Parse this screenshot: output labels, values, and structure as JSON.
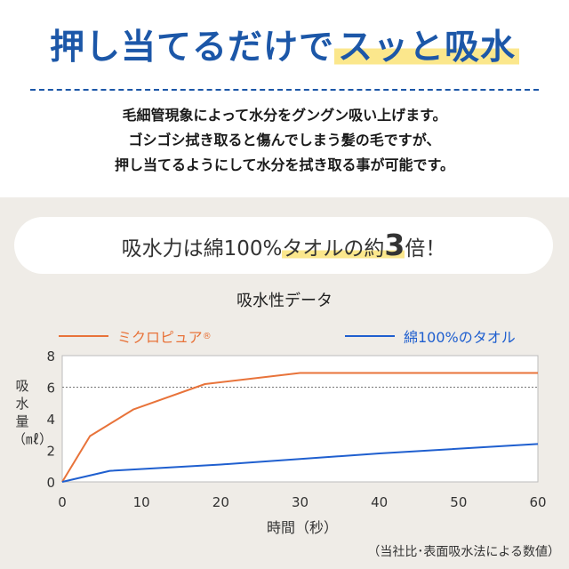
{
  "headline": {
    "part1": "押し当てるだけで",
    "part2": "スッと吸水"
  },
  "description": [
    "毛細管現象によって水分をグングン吸い上げます。",
    "ゴシゴシ拭き取ると傷んでしまう髪の毛ですが、",
    "押し当てるようにして水分を拭き取る事が可能です。"
  ],
  "claim": {
    "prefix": "吸水力は綿100%",
    "highlight": "タオルの約",
    "number": "3",
    "suffix": "倍！"
  },
  "note": "（当社比･表面吸水法による数値）",
  "colors": {
    "orange": "#e8733a",
    "blue": "#1f5fcf",
    "headline_blue": "#1c57a8",
    "highlight": "#fbe78c"
  },
  "chart_data": {
    "type": "line",
    "title": "吸水性データ",
    "xlabel": "時間（秒）",
    "ylabel": "吸水量（㎖）",
    "xlim": [
      0,
      60
    ],
    "ylim": [
      0,
      8
    ],
    "xticks": [
      0,
      10,
      20,
      30,
      40,
      50,
      60
    ],
    "yticks": [
      0,
      2,
      4,
      6,
      8
    ],
    "reference_line": 6,
    "legend": "top",
    "series": [
      {
        "name": "ミクロピュア",
        "mark": "®",
        "color": "#e8733a",
        "x": [
          0,
          3.5,
          9,
          18,
          30,
          60
        ],
        "y": [
          0,
          2.9,
          4.6,
          6.2,
          6.9,
          6.9
        ]
      },
      {
        "name": "綿100%のタオル",
        "color": "#1f5fcf",
        "x": [
          0,
          6,
          20,
          40,
          60
        ],
        "y": [
          0,
          0.7,
          1.1,
          1.8,
          2.4
        ]
      }
    ]
  }
}
